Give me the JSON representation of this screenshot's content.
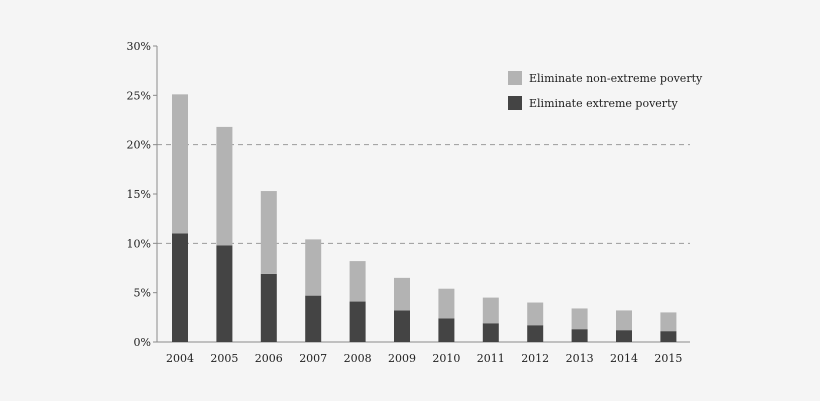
{
  "chart_data": {
    "type": "bar",
    "stacked": true,
    "title": "",
    "xlabel": "",
    "ylabel": "",
    "categories": [
      "2004",
      "2005",
      "2006",
      "2007",
      "2008",
      "2009",
      "2010",
      "2011",
      "2012",
      "2013",
      "2014",
      "2015"
    ],
    "series": [
      {
        "name": "Eliminate extreme poverty",
        "color": "#444444",
        "values": [
          11.0,
          9.8,
          6.9,
          4.7,
          4.1,
          3.2,
          2.4,
          1.9,
          1.7,
          1.3,
          1.2,
          1.1
        ]
      },
      {
        "name": "Eliminate non-extreme poverty",
        "color": "#b3b3b3",
        "values": [
          14.1,
          12.0,
          8.4,
          5.7,
          4.1,
          3.3,
          3.0,
          2.6,
          2.3,
          2.1,
          2.0,
          1.9
        ]
      }
    ],
    "ylim": [
      0,
      30
    ],
    "yticks": [
      0,
      5,
      10,
      15,
      20,
      25,
      30
    ],
    "ytick_labels": [
      "0%",
      "5%",
      "10%",
      "15%",
      "20%",
      "25%",
      "30%"
    ],
    "gridlines": [
      10,
      20
    ],
    "grid_style": "dashed",
    "legend": {
      "position": "top-right",
      "entries": [
        "Eliminate non-extreme poverty",
        "Eliminate extreme poverty"
      ]
    }
  }
}
